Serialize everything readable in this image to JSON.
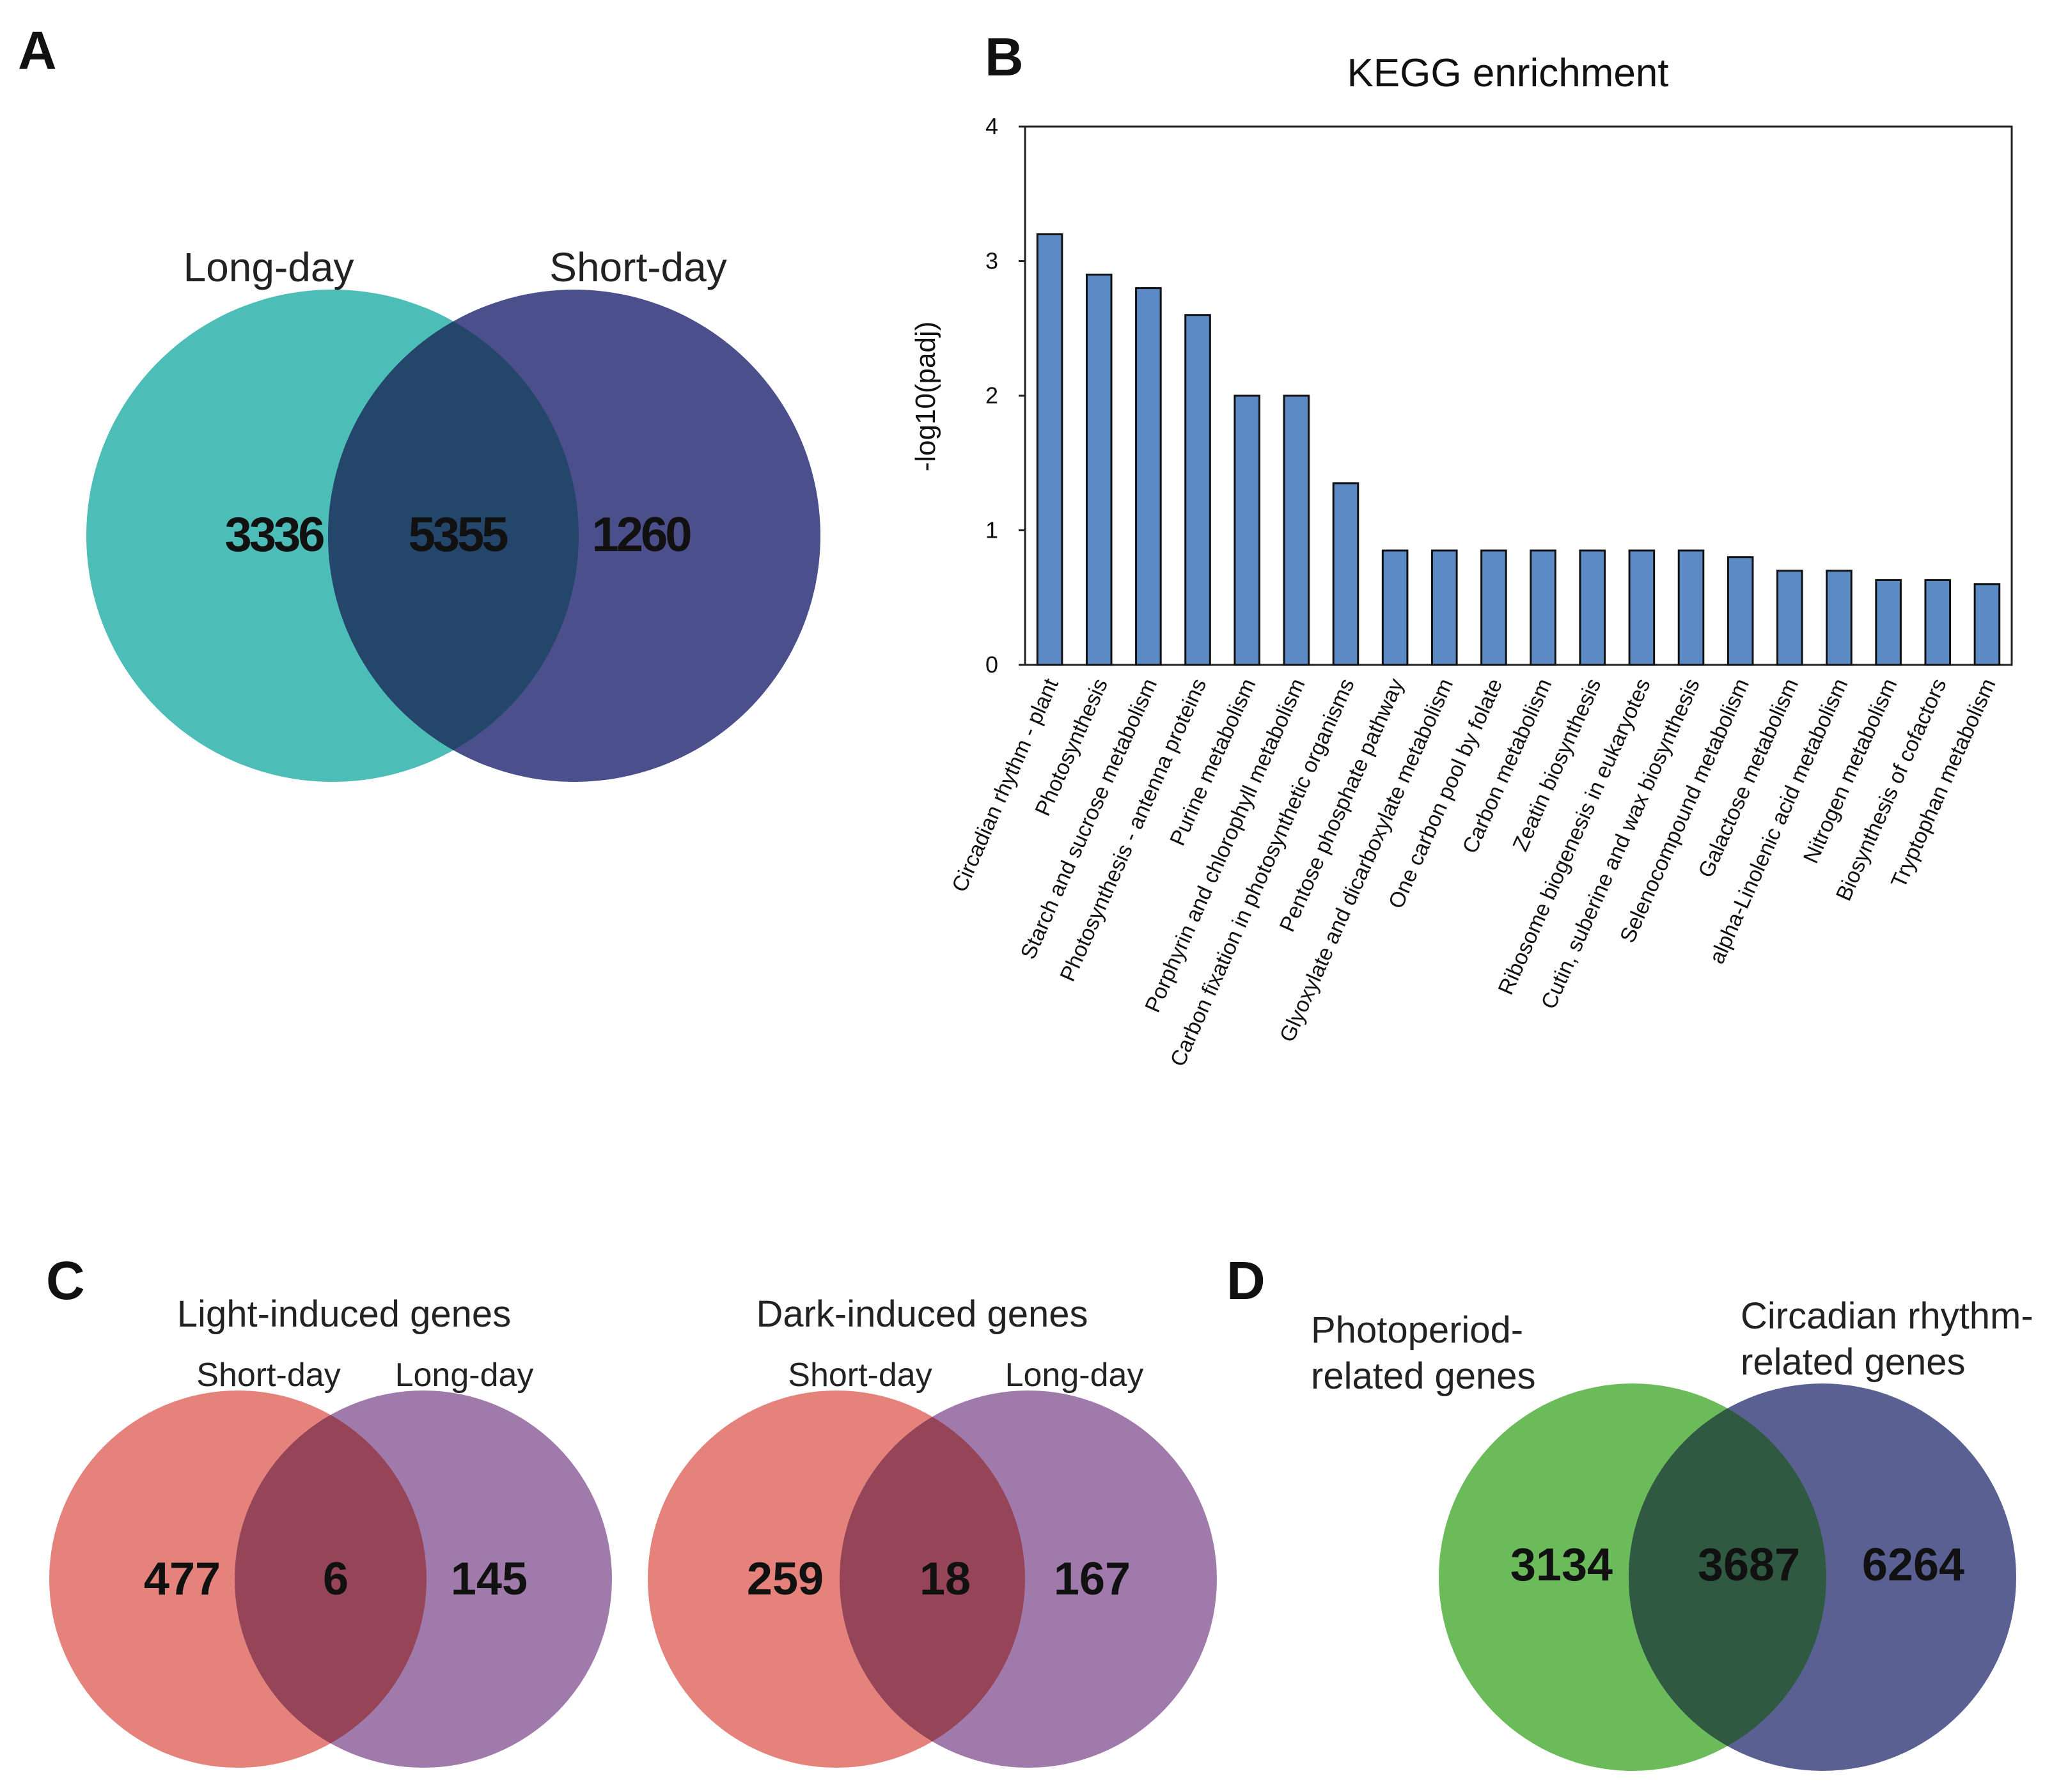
{
  "panels": {
    "A": {
      "letter": "A",
      "left_label": "Long-day",
      "right_label": "Short-day",
      "left_only": "3336",
      "overlap": "5355",
      "right_only": "1260",
      "colors": {
        "left": "#4dbdb8",
        "right": "#4b4f8c",
        "overlap": "#24466b"
      }
    },
    "B": {
      "letter": "B"
    },
    "C": {
      "letter": "C",
      "light": {
        "title": "Light-induced genes",
        "left_label": "Short-day",
        "right_label": "Long-day",
        "left_only": "477",
        "overlap": "6",
        "right_only": "145"
      },
      "dark": {
        "title": "Dark-induced genes",
        "left_label": "Short-day",
        "right_label": "Long-day",
        "left_only": "259",
        "overlap": "18",
        "right_only": "167"
      },
      "colors": {
        "left": "#e5827c",
        "right": "#a07aab",
        "overlap": "#964457"
      }
    },
    "D": {
      "letter": "D",
      "left_label_line1": "Photoperiod-",
      "left_label_line2": "related genes",
      "right_label_line1": "Circadian rhythm-",
      "right_label_line2": "related genes",
      "left_only": "3134",
      "overlap": "3687",
      "right_only": "6264",
      "colors": {
        "left": "#6cbb5b",
        "right": "#5a6192",
        "overlap": "#2f5941"
      }
    }
  },
  "chart_data": {
    "type": "bar",
    "title": "KEGG enrichment",
    "xlabel": "",
    "ylabel": "-log10(padj)",
    "ylim": [
      0,
      4
    ],
    "yticks": [
      "0",
      "1",
      "2",
      "3",
      "4"
    ],
    "bar_color": "#5b8ac5",
    "highlight_color": "#d93b34",
    "highlight_index": 0,
    "categories": [
      "Circadian rhythm - plant",
      "Photosynthesis",
      "Starch and sucrose metabolism",
      "Photosynthesis - antenna proteins",
      "Purine metabolism",
      "Porphyrin and chlorophyll metabolism",
      "Carbon fixation in photosynthetic organisms",
      "Pentose phosphate pathway",
      "Glyoxylate and dicarboxylate metabolism",
      "One carbon pool by folate",
      "Carbon metabolism",
      "Zeatin biosynthesis",
      "Ribosome biogenesis in eukaryotes",
      "Cutin, suberine and wax biosynthesis",
      "Selenocompound metabolism",
      "Galactose metabolism",
      "alpha-Linolenic acid metabolism",
      "Nitrogen metabolism",
      "Biosynthesis of cofactors",
      "Tryptophan metabolism"
    ],
    "values": [
      3.2,
      2.9,
      2.8,
      2.6,
      2.0,
      2.0,
      1.35,
      0.85,
      0.85,
      0.85,
      0.85,
      0.85,
      0.85,
      0.85,
      0.8,
      0.7,
      0.7,
      0.63,
      0.63,
      0.6
    ]
  }
}
